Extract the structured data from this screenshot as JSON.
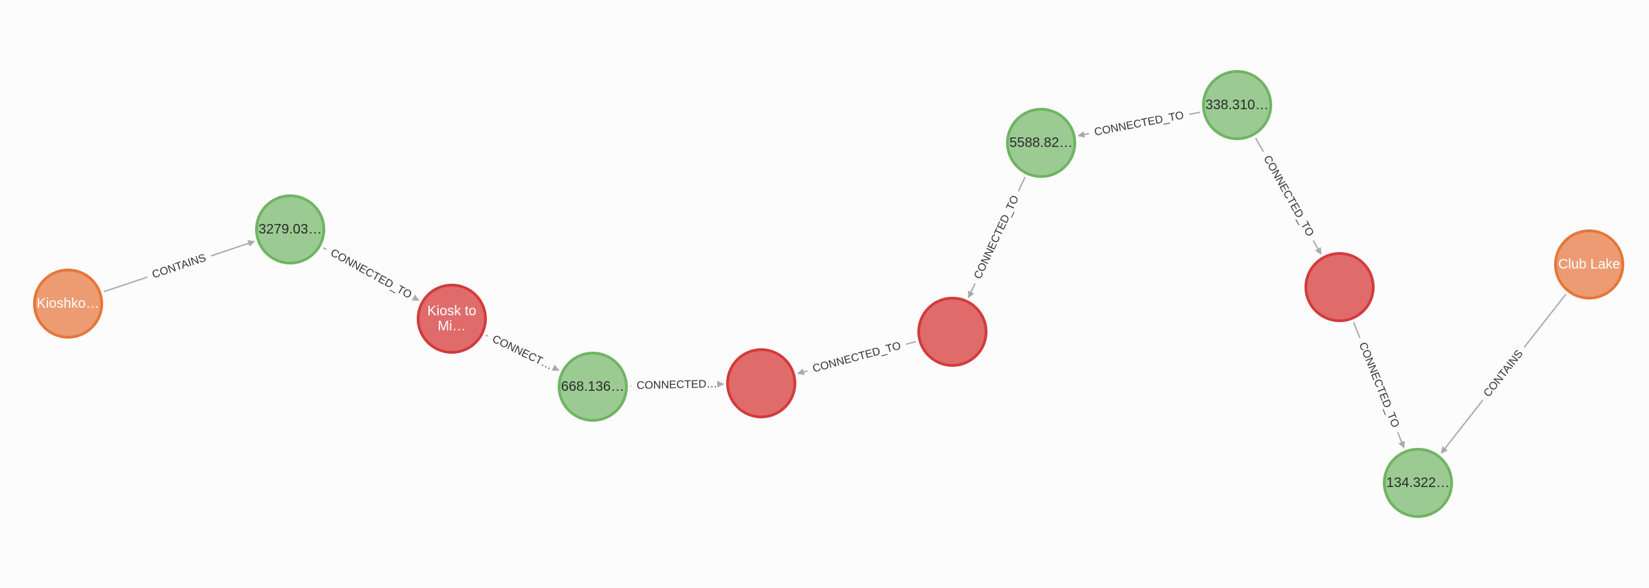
{
  "graph": {
    "node_types": {
      "orange": {
        "fill": "#ec9b72",
        "stroke": "#e5763a",
        "text": "#ffffff"
      },
      "green": {
        "fill": "#9bcb93",
        "stroke": "#6fb463",
        "text": "#2b2b2b"
      },
      "red": {
        "fill": "#e06b6b",
        "stroke": "#d23b3b",
        "text": "#ffffff"
      }
    },
    "edge_color": "#aaaaaa",
    "nodes": [
      {
        "id": "n1",
        "type": "orange",
        "label": [
          "Kioshko…"
        ]
      },
      {
        "id": "n2",
        "type": "green",
        "label": [
          "3279.03…"
        ]
      },
      {
        "id": "n3",
        "type": "red",
        "label": [
          "Kiosk to",
          "Mi…"
        ]
      },
      {
        "id": "n4",
        "type": "green",
        "label": [
          "668.136…"
        ]
      },
      {
        "id": "n5",
        "type": "red",
        "label": []
      },
      {
        "id": "n6",
        "type": "red",
        "label": []
      },
      {
        "id": "n7",
        "type": "green",
        "label": [
          "5588.82…"
        ]
      },
      {
        "id": "n8",
        "type": "green",
        "label": [
          "338.310…"
        ]
      },
      {
        "id": "n9",
        "type": "red",
        "label": []
      },
      {
        "id": "n10",
        "type": "green",
        "label": [
          "134.322…"
        ]
      },
      {
        "id": "n11",
        "type": "orange",
        "label": [
          "Club Lake"
        ]
      }
    ],
    "edges": [
      {
        "from": "n1",
        "to": "n2",
        "label": "CONTAINS"
      },
      {
        "from": "n2",
        "to": "n3",
        "label": "CONNECTED_TO"
      },
      {
        "from": "n3",
        "to": "n4",
        "label": "CONNECT…"
      },
      {
        "from": "n4",
        "to": "n5",
        "label": "CONNECTED…"
      },
      {
        "from": "n6",
        "to": "n5",
        "label": "CONNECTED_TO"
      },
      {
        "from": "n7",
        "to": "n6",
        "label": "CONNECTED_TO"
      },
      {
        "from": "n8",
        "to": "n7",
        "label": "CONNECTED_TO"
      },
      {
        "from": "n8",
        "to": "n9",
        "label": "CONNECTED_TO"
      },
      {
        "from": "n9",
        "to": "n10",
        "label": "CONNECTED_TO"
      },
      {
        "from": "n11",
        "to": "n10",
        "label": "CONTAINS"
      }
    ]
  }
}
